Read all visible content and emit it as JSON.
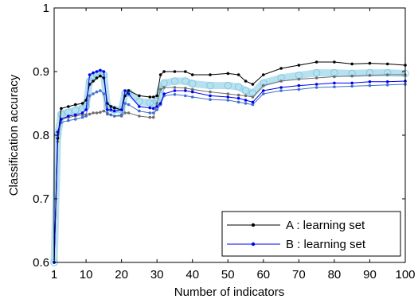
{
  "chart_data": {
    "type": "line",
    "xlabel": "Number of indicators",
    "ylabel": "Classification accuracy",
    "xlim": [
      1,
      100
    ],
    "ylim": [
      0.6,
      1
    ],
    "x_ticks": [
      1,
      10,
      20,
      30,
      40,
      50,
      60,
      70,
      80,
      90,
      100
    ],
    "y_ticks": [
      0.6,
      0.7,
      0.8,
      0.9,
      1
    ],
    "y_tick_labels": [
      "0.6",
      "0.7",
      "0.8",
      "0.9",
      "1"
    ],
    "grid": false,
    "legend_position": "bottom-right",
    "series": [
      {
        "name": "A : learning set",
        "color": "#000000",
        "x": [
          1,
          2,
          3,
          5,
          7,
          9,
          10,
          11,
          12,
          13,
          14,
          15,
          16,
          17,
          18,
          20,
          21,
          22,
          25,
          28,
          29,
          30,
          31,
          32,
          35,
          38,
          40,
          45,
          50,
          53,
          55,
          57,
          60,
          65,
          70,
          75,
          80,
          85,
          90,
          95,
          100
        ],
        "y": [
          0.6,
          0.795,
          0.842,
          0.845,
          0.848,
          0.85,
          0.855,
          0.88,
          0.885,
          0.89,
          0.893,
          0.89,
          0.85,
          0.845,
          0.843,
          0.84,
          0.862,
          0.87,
          0.862,
          0.86,
          0.86,
          0.862,
          0.895,
          0.9,
          0.9,
          0.9,
          0.895,
          0.895,
          0.897,
          0.895,
          0.885,
          0.88,
          0.895,
          0.905,
          0.91,
          0.915,
          0.915,
          0.912,
          0.913,
          0.912,
          0.91
        ]
      },
      {
        "name": "B : learning set",
        "color": "#0000ee",
        "x": [
          1,
          2,
          3,
          5,
          7,
          9,
          10,
          11,
          12,
          13,
          14,
          15,
          16,
          17,
          18,
          20,
          21,
          22,
          25,
          28,
          29,
          30,
          31,
          32,
          35,
          38,
          40,
          45,
          50,
          53,
          55,
          57,
          60,
          65,
          70,
          75,
          80,
          85,
          90,
          95,
          100
        ],
        "y": [
          0.6,
          0.805,
          0.825,
          0.83,
          0.832,
          0.835,
          0.84,
          0.895,
          0.898,
          0.9,
          0.902,
          0.9,
          0.84,
          0.84,
          0.838,
          0.84,
          0.87,
          0.865,
          0.845,
          0.843,
          0.842,
          0.845,
          0.85,
          0.865,
          0.87,
          0.87,
          0.868,
          0.862,
          0.86,
          0.858,
          0.855,
          0.852,
          0.87,
          0.875,
          0.878,
          0.88,
          0.882,
          0.882,
          0.884,
          0.884,
          0.885
        ]
      }
    ],
    "extra_series": [
      {
        "color": "#6e6e6e",
        "x": [
          1,
          2,
          3,
          5,
          7,
          9,
          10,
          11,
          12,
          13,
          14,
          15,
          16,
          17,
          18,
          20,
          21,
          22,
          25,
          28,
          29,
          30,
          31,
          32,
          35,
          38,
          40,
          45,
          50,
          53,
          55,
          57,
          60,
          65,
          70,
          75,
          80,
          85,
          90,
          95,
          100
        ],
        "y": [
          0.6,
          0.79,
          0.825,
          0.828,
          0.83,
          0.832,
          0.832,
          0.833,
          0.835,
          0.835,
          0.836,
          0.838,
          0.835,
          0.832,
          0.83,
          0.83,
          0.835,
          0.835,
          0.83,
          0.828,
          0.828,
          0.85,
          0.872,
          0.875,
          0.875,
          0.874,
          0.872,
          0.868,
          0.865,
          0.863,
          0.862,
          0.86,
          0.878,
          0.885,
          0.888,
          0.89,
          0.892,
          0.893,
          0.894,
          0.895,
          0.895
        ]
      },
      {
        "color": "#3d6fd1",
        "x": [
          1,
          2,
          3,
          5,
          7,
          9,
          10,
          11,
          12,
          13,
          14,
          15,
          16,
          17,
          18,
          20,
          21,
          22,
          25,
          28,
          29,
          30,
          31,
          32,
          35,
          38,
          40,
          45,
          50,
          53,
          55,
          57,
          60,
          65,
          70,
          75,
          80,
          85,
          90,
          95,
          100
        ],
        "y": [
          0.6,
          0.8,
          0.82,
          0.823,
          0.825,
          0.828,
          0.83,
          0.862,
          0.865,
          0.868,
          0.87,
          0.865,
          0.833,
          0.832,
          0.83,
          0.832,
          0.85,
          0.848,
          0.838,
          0.835,
          0.835,
          0.84,
          0.848,
          0.862,
          0.864,
          0.862,
          0.86,
          0.856,
          0.855,
          0.852,
          0.85,
          0.848,
          0.865,
          0.87,
          0.872,
          0.875,
          0.876,
          0.877,
          0.878,
          0.879,
          0.88
        ]
      }
    ],
    "bands": [
      {
        "color": "#7ec8e3",
        "x": [
          1,
          2,
          3,
          5,
          7,
          9,
          10,
          11,
          12,
          13,
          14,
          15,
          16,
          17,
          18,
          20,
          21,
          22,
          25,
          28,
          29,
          30,
          31,
          32,
          35,
          38,
          40,
          45,
          50,
          53,
          55,
          57,
          60,
          65,
          70,
          75,
          80,
          85,
          90,
          95,
          100
        ],
        "y": [
          0.6,
          0.8,
          0.833,
          0.836,
          0.839,
          0.842,
          0.845,
          0.885,
          0.89,
          0.895,
          0.898,
          0.895,
          0.845,
          0.842,
          0.84,
          0.84,
          0.866,
          0.867,
          0.853,
          0.851,
          0.85,
          0.853,
          0.872,
          0.882,
          0.885,
          0.885,
          0.881,
          0.878,
          0.878,
          0.876,
          0.87,
          0.866,
          0.882,
          0.89,
          0.894,
          0.898,
          0.898,
          0.897,
          0.898,
          0.898,
          0.897
        ]
      }
    ]
  }
}
